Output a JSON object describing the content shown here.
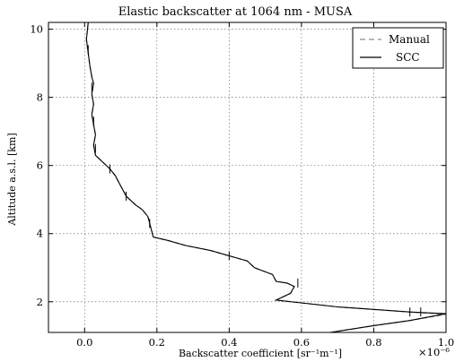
{
  "chart_data": {
    "type": "line",
    "title": "Elastic backscatter at 1064 nm - MUSA",
    "xlabel": "Backscatter coefficient [sr⁻¹m⁻¹]",
    "ylabel": "Altitude a.s.l. [km]",
    "x_multiplier": "×10⁻⁶",
    "xlim": [
      -0.1,
      1.0
    ],
    "ylim": [
      1.1,
      10.2
    ],
    "xticks": [
      "0.0",
      "0.2",
      "0.4",
      "0.6",
      "0.8",
      "1.0"
    ],
    "yticks": [
      "2",
      "4",
      "6",
      "8",
      "10"
    ],
    "grid": true,
    "legend_position": "top-right",
    "series": [
      {
        "name": "Manual",
        "style": "dashed",
        "color": "#8c8c8c",
        "points": [
          [
            0.68,
            1.1
          ],
          [
            0.8,
            1.3
          ],
          [
            0.9,
            1.45
          ],
          [
            1.0,
            1.63
          ],
          [
            0.9,
            1.7
          ],
          [
            0.7,
            1.85
          ],
          [
            0.53,
            2.05
          ],
          [
            0.57,
            2.25
          ],
          [
            0.58,
            2.45
          ],
          [
            0.56,
            2.55
          ],
          [
            0.53,
            2.6
          ],
          [
            0.52,
            2.8
          ],
          [
            0.47,
            3.0
          ],
          [
            0.45,
            3.2
          ],
          [
            0.4,
            3.35
          ],
          [
            0.35,
            3.5
          ],
          [
            0.28,
            3.65
          ],
          [
            0.23,
            3.8
          ],
          [
            0.19,
            3.9
          ],
          [
            0.185,
            4.1
          ],
          [
            0.18,
            4.3
          ],
          [
            0.175,
            4.5
          ],
          [
            0.16,
            4.7
          ],
          [
            0.14,
            4.85
          ],
          [
            0.115,
            5.1
          ],
          [
            0.1,
            5.4
          ],
          [
            0.085,
            5.7
          ],
          [
            0.07,
            5.9
          ],
          [
            0.05,
            6.1
          ],
          [
            0.03,
            6.3
          ],
          [
            0.025,
            6.6
          ],
          [
            0.03,
            6.9
          ],
          [
            0.025,
            7.2
          ],
          [
            0.02,
            7.5
          ],
          [
            0.025,
            7.8
          ],
          [
            0.02,
            8.1
          ],
          [
            0.025,
            8.4
          ],
          [
            0.02,
            8.6
          ],
          [
            0.015,
            8.9
          ],
          [
            0.01,
            9.3
          ],
          [
            0.005,
            9.7
          ],
          [
            0.01,
            10.2
          ]
        ]
      },
      {
        "name": "SCC",
        "style": "solid",
        "color": "#000000",
        "points": [
          [
            0.68,
            1.1
          ],
          [
            0.8,
            1.3
          ],
          [
            0.9,
            1.45
          ],
          [
            1.0,
            1.65
          ],
          [
            0.9,
            1.7
          ],
          [
            0.7,
            1.85
          ],
          [
            0.53,
            2.05
          ],
          [
            0.57,
            2.25
          ],
          [
            0.58,
            2.45
          ],
          [
            0.56,
            2.55
          ],
          [
            0.53,
            2.6
          ],
          [
            0.52,
            2.8
          ],
          [
            0.47,
            3.0
          ],
          [
            0.45,
            3.2
          ],
          [
            0.4,
            3.35
          ],
          [
            0.35,
            3.5
          ],
          [
            0.28,
            3.65
          ],
          [
            0.23,
            3.8
          ],
          [
            0.19,
            3.9
          ],
          [
            0.185,
            4.1
          ],
          [
            0.18,
            4.3
          ],
          [
            0.175,
            4.5
          ],
          [
            0.16,
            4.7
          ],
          [
            0.14,
            4.85
          ],
          [
            0.115,
            5.1
          ],
          [
            0.1,
            5.4
          ],
          [
            0.085,
            5.7
          ],
          [
            0.07,
            5.9
          ],
          [
            0.05,
            6.1
          ],
          [
            0.03,
            6.3
          ],
          [
            0.025,
            6.6
          ],
          [
            0.03,
            6.9
          ],
          [
            0.025,
            7.2
          ],
          [
            0.02,
            7.5
          ],
          [
            0.025,
            7.8
          ],
          [
            0.02,
            8.1
          ],
          [
            0.025,
            8.4
          ],
          [
            0.02,
            8.6
          ],
          [
            0.015,
            8.9
          ],
          [
            0.01,
            9.3
          ],
          [
            0.005,
            9.7
          ],
          [
            0.01,
            10.2
          ]
        ]
      }
    ],
    "error_bars": [
      {
        "x": 0.9,
        "y": 1.7
      },
      {
        "x": 0.93,
        "y": 1.7
      },
      {
        "x": 0.59,
        "y": 2.55
      },
      {
        "x": 0.4,
        "y": 3.35
      },
      {
        "x": 0.18,
        "y": 4.3
      },
      {
        "x": 0.115,
        "y": 5.1
      },
      {
        "x": 0.07,
        "y": 5.9
      },
      {
        "x": 0.03,
        "y": 6.5
      },
      {
        "x": 0.025,
        "y": 7.3
      },
      {
        "x": 0.02,
        "y": 8.3
      },
      {
        "x": 0.01,
        "y": 9.4
      }
    ]
  }
}
